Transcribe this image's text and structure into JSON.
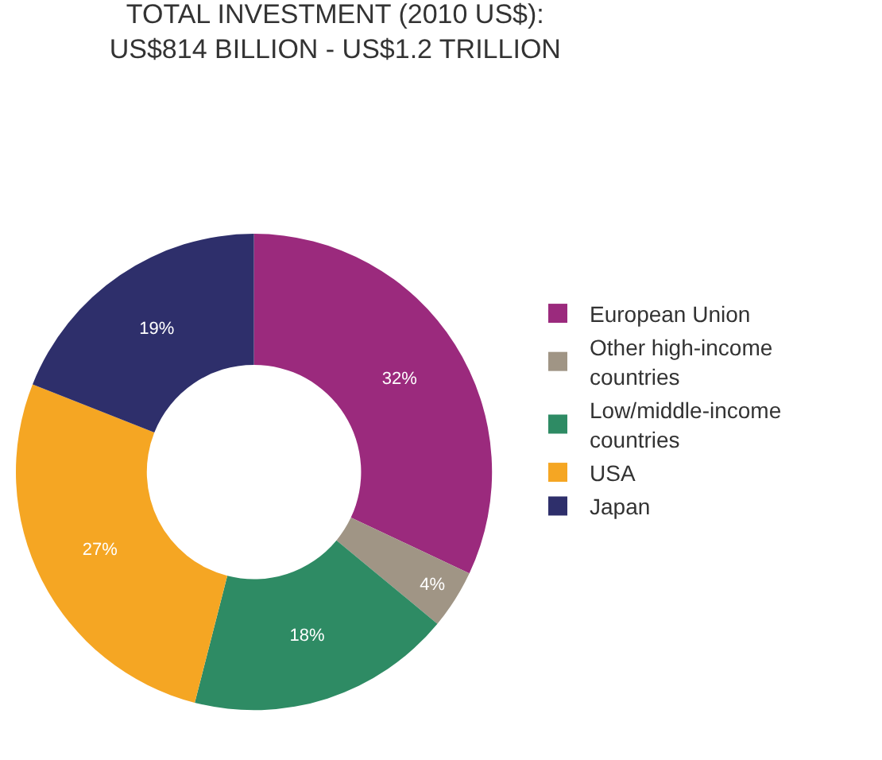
{
  "chart_data": {
    "type": "donut",
    "title": "TOTAL INVESTMENT (2010 US$):\nUS$814 BILLION - US$1.2 TRILLION",
    "categories": [
      "European Union",
      "Other high-income countries",
      "Low/middle-income countries",
      "USA",
      "Japan"
    ],
    "values": [
      32,
      4,
      18,
      27,
      19
    ],
    "value_labels": [
      "32%",
      "4%",
      "18%",
      "27%",
      "19%"
    ],
    "colors": [
      "#9b2a7d",
      "#a09585",
      "#2e8b64",
      "#f5a623",
      "#2e2f6b"
    ],
    "legend": "right"
  }
}
